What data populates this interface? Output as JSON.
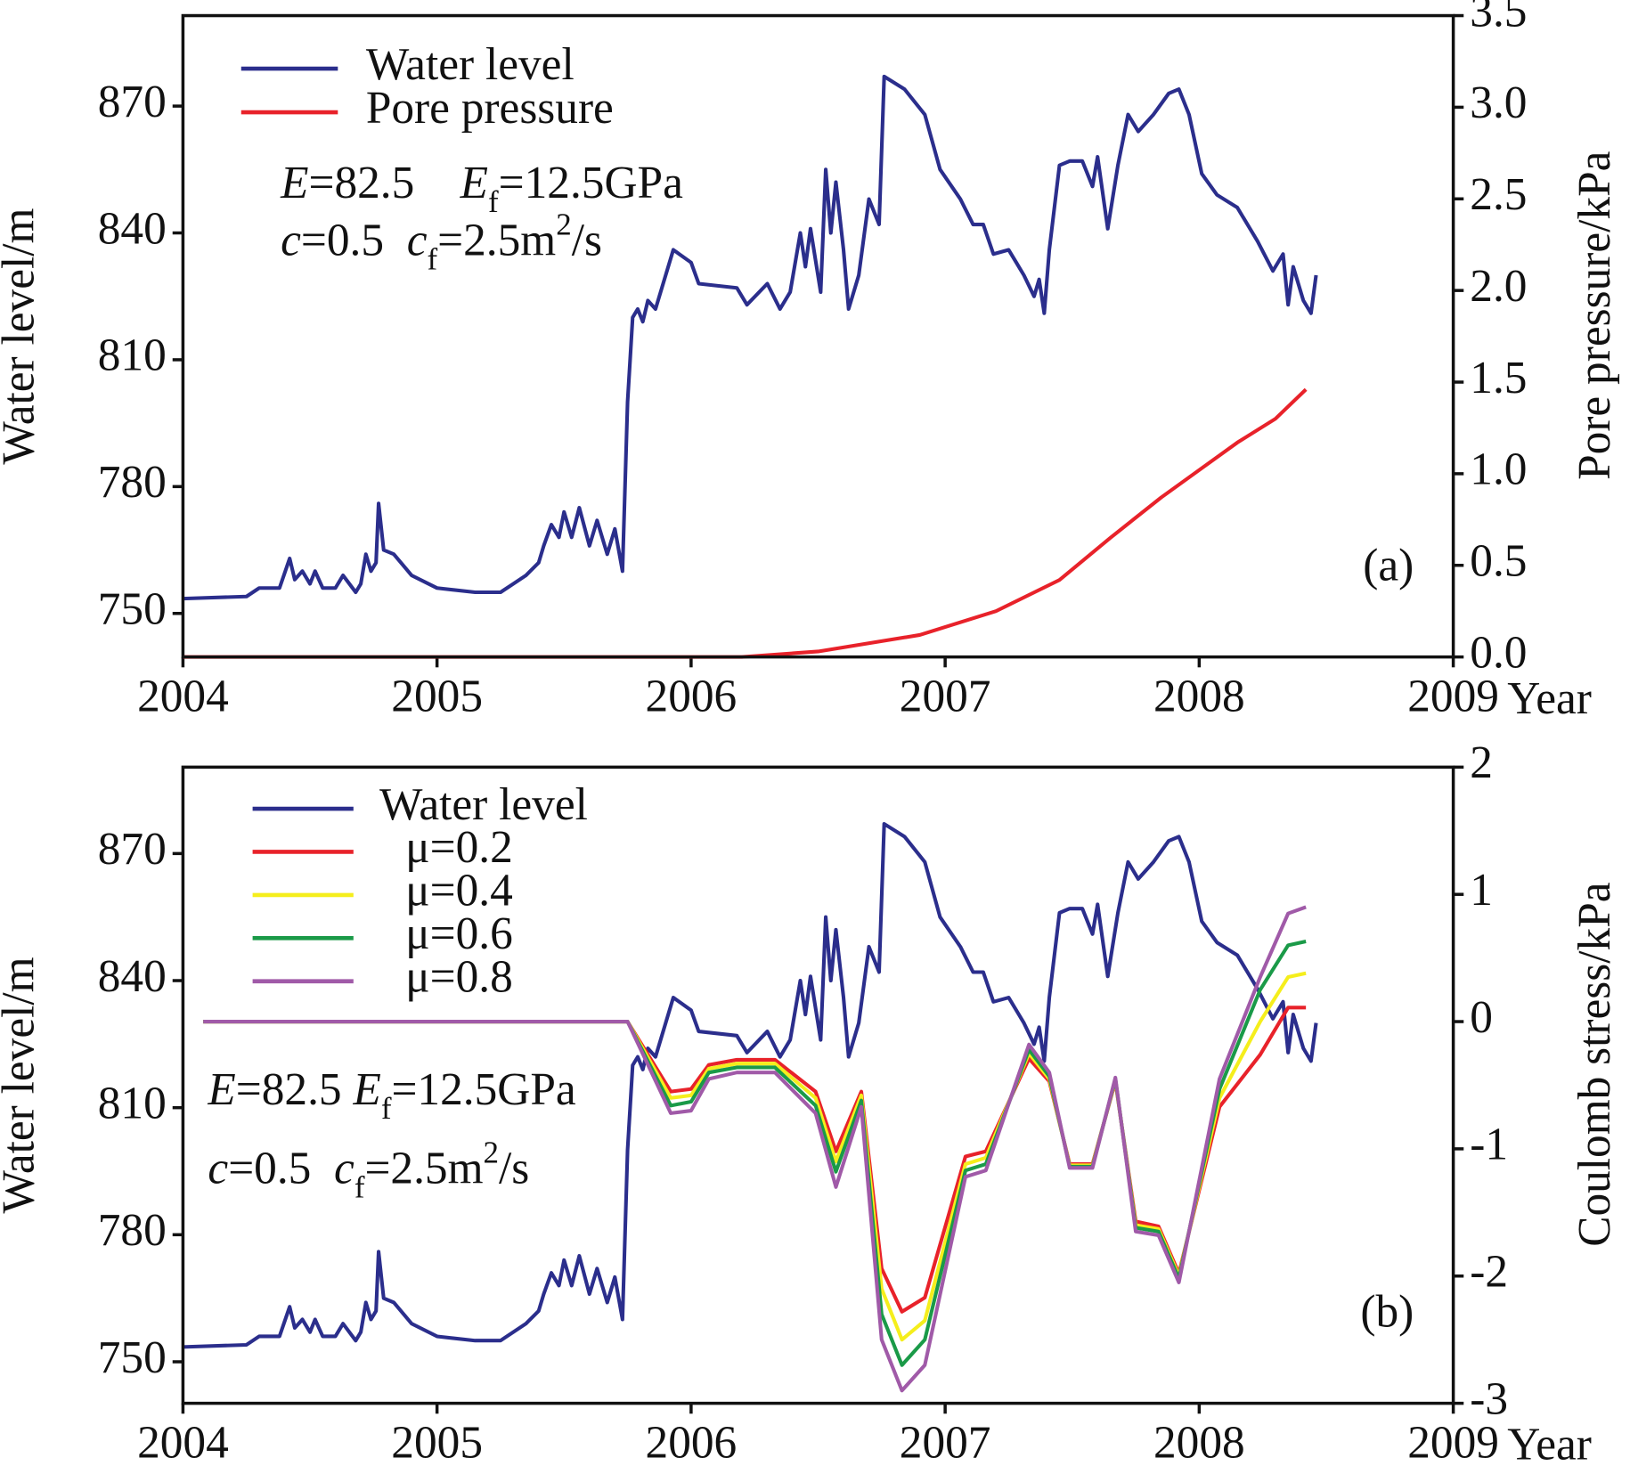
{
  "chart_data": [
    {
      "type": "line",
      "panel_label": "(a)",
      "xlabel": "Year",
      "ylabel": "Water level/m",
      "y2label": "Pore pressure/kPa",
      "xlim": [
        2004,
        2009
      ],
      "xticks": [
        2004,
        2005,
        2006,
        2007,
        2008,
        2009
      ],
      "ylim": [
        739.7,
        891.4
      ],
      "yticks": [
        750,
        780,
        810,
        840,
        870
      ],
      "y2lim": [
        0,
        3.5
      ],
      "y2ticks": [
        {
          "value": 0,
          "label": "0.0"
        },
        0.5,
        {
          "value": 1,
          "label": "1.0"
        },
        1.5,
        {
          "value": 2,
          "label": "2.0"
        },
        2.5,
        {
          "value": 3,
          "label": "3.0"
        },
        3.5
      ],
      "annotations": [
        [
          {
            "text": "E",
            "style": "italic"
          },
          {
            "text": "=82.5    ",
            "style": "normal"
          },
          {
            "text": "E",
            "style": "italic"
          },
          {
            "text": "f",
            "style": "sub"
          },
          {
            "text": "=12.5GPa",
            "style": "normal"
          }
        ],
        [
          {
            "text": "c",
            "style": "italic"
          },
          {
            "text": "=0.5  ",
            "style": "normal"
          },
          {
            "text": "c",
            "style": "italic"
          },
          {
            "text": "f",
            "style": "sub"
          },
          {
            "text": "=2.5m",
            "style": "normal"
          },
          {
            "text": "2",
            "style": "sup"
          },
          {
            "text": "/s",
            "style": "normal"
          }
        ]
      ],
      "series": [
        {
          "name": "Water level",
          "color": "#2b2e8c",
          "x": [
            2004.0,
            2004.25,
            2004.3,
            2004.38,
            2004.42,
            2004.44,
            2004.47,
            2004.5,
            2004.52,
            2004.55,
            2004.6,
            2004.63,
            2004.68,
            2004.7,
            2004.72,
            2004.74,
            2004.76,
            2004.77,
            2004.79,
            2004.83,
            2004.9,
            2005.0,
            2005.15,
            2005.25,
            2005.3,
            2005.35,
            2005.4,
            2005.42,
            2005.45,
            2005.48,
            2005.5,
            2005.53,
            2005.56,
            2005.6,
            2005.63,
            2005.67,
            2005.7,
            2005.73,
            2005.75,
            2005.77,
            2005.79,
            2005.81,
            2005.83,
            2005.86,
            2005.93,
            2006.0,
            2006.03,
            2006.18,
            2006.22,
            2006.3,
            2006.35,
            2006.39,
            2006.43,
            2006.45,
            2006.47,
            2006.51,
            2006.53,
            2006.55,
            2006.57,
            2006.6,
            2006.62,
            2006.66,
            2006.7,
            2006.74,
            2006.76,
            2006.84,
            2006.92,
            2006.98,
            2007.06,
            2007.11,
            2007.15,
            2007.19,
            2007.25,
            2007.31,
            2007.35,
            2007.37,
            2007.39,
            2007.41,
            2007.45,
            2007.49,
            2007.54,
            2007.58,
            2007.6,
            2007.64,
            2007.68,
            2007.72,
            2007.76,
            2007.82,
            2007.88,
            2007.92,
            2007.96,
            2008.01,
            2008.07,
            2008.15,
            2008.23,
            2008.29,
            2008.33,
            2008.35,
            2008.37,
            2008.41,
            2008.44,
            2008.46
          ],
          "values": [
            753.5,
            754,
            756,
            756,
            763,
            758,
            760,
            757,
            760,
            756,
            756,
            759,
            755,
            757,
            764,
            760,
            762,
            776,
            765,
            764,
            759,
            756,
            755,
            755,
            757,
            759,
            762,
            766,
            771,
            768,
            774,
            768,
            775,
            766,
            772,
            764,
            770,
            760,
            800,
            820,
            822,
            819,
            824,
            822,
            836,
            833,
            828,
            827,
            823,
            828,
            822,
            826,
            840,
            832,
            841,
            826,
            855,
            840,
            852,
            836,
            822,
            830,
            848,
            842,
            877,
            874,
            868,
            855,
            848,
            842,
            842,
            835,
            836,
            830,
            825,
            829,
            821,
            836,
            856,
            857,
            857,
            851,
            858,
            841,
            856,
            868,
            864,
            868,
            873,
            874,
            868,
            854,
            849,
            846,
            838,
            831,
            835,
            823,
            832,
            824,
            821,
            830
          ]
        },
        {
          "name": "Pore pressure",
          "color": "#e8222a",
          "axis": "y2",
          "x": [
            2004.0,
            2006.2,
            2006.5,
            2006.9,
            2007.2,
            2007.45,
            2007.65,
            2007.85,
            2008.0,
            2008.15,
            2008.3,
            2008.42
          ],
          "values": [
            0,
            0,
            0.03,
            0.12,
            0.25,
            0.42,
            0.65,
            0.87,
            1.02,
            1.17,
            1.3,
            1.46
          ]
        }
      ]
    },
    {
      "type": "line",
      "panel_label": "(b)",
      "xlabel": "Year",
      "ylabel": "Water level/m",
      "y2label": "Coulomb stress/kPa",
      "xlim": [
        2004,
        2009
      ],
      "xticks": [
        2004,
        2005,
        2006,
        2007,
        2008,
        2009
      ],
      "ylim": [
        740.2,
        890.4
      ],
      "yticks": [
        750,
        780,
        810,
        840,
        870
      ],
      "y2lim": [
        -3,
        2
      ],
      "y2ticks": [
        -3,
        -2,
        -1,
        0,
        1,
        2
      ],
      "annotations": [
        [
          {
            "text": "E",
            "style": "italic"
          },
          {
            "text": "=82.5 ",
            "style": "normal"
          },
          {
            "text": "E",
            "style": "italic"
          },
          {
            "text": "f",
            "style": "sub"
          },
          {
            "text": "=12.5GPa",
            "style": "normal"
          }
        ],
        [
          {
            "text": "c",
            "style": "italic"
          },
          {
            "text": "=0.5  ",
            "style": "normal"
          },
          {
            "text": "c",
            "style": "italic"
          },
          {
            "text": "f",
            "style": "sub"
          },
          {
            "text": "=2.5m",
            "style": "normal"
          },
          {
            "text": "2",
            "style": "sup"
          },
          {
            "text": "/s",
            "style": "normal"
          }
        ]
      ],
      "series": [
        {
          "name": "Water level",
          "color": "#2b2e8c",
          "x": [
            2004.0,
            2004.25,
            2004.3,
            2004.38,
            2004.42,
            2004.44,
            2004.47,
            2004.5,
            2004.52,
            2004.55,
            2004.6,
            2004.63,
            2004.68,
            2004.7,
            2004.72,
            2004.74,
            2004.76,
            2004.77,
            2004.79,
            2004.83,
            2004.9,
            2005.0,
            2005.15,
            2005.25,
            2005.3,
            2005.35,
            2005.4,
            2005.42,
            2005.45,
            2005.48,
            2005.5,
            2005.53,
            2005.56,
            2005.6,
            2005.63,
            2005.67,
            2005.7,
            2005.73,
            2005.75,
            2005.77,
            2005.79,
            2005.81,
            2005.83,
            2005.86,
            2005.93,
            2006.0,
            2006.03,
            2006.18,
            2006.22,
            2006.3,
            2006.35,
            2006.39,
            2006.43,
            2006.45,
            2006.47,
            2006.51,
            2006.53,
            2006.55,
            2006.57,
            2006.6,
            2006.62,
            2006.66,
            2006.7,
            2006.74,
            2006.76,
            2006.84,
            2006.92,
            2006.98,
            2007.06,
            2007.11,
            2007.15,
            2007.19,
            2007.25,
            2007.31,
            2007.35,
            2007.37,
            2007.39,
            2007.41,
            2007.45,
            2007.49,
            2007.54,
            2007.58,
            2007.6,
            2007.64,
            2007.68,
            2007.72,
            2007.76,
            2007.82,
            2007.88,
            2007.92,
            2007.96,
            2008.01,
            2008.07,
            2008.15,
            2008.23,
            2008.29,
            2008.33,
            2008.35,
            2008.37,
            2008.41,
            2008.44,
            2008.46
          ],
          "values": [
            753.5,
            754,
            756,
            756,
            763,
            758,
            760,
            757,
            760,
            756,
            756,
            759,
            755,
            757,
            764,
            760,
            762,
            776,
            765,
            764,
            759,
            756,
            755,
            755,
            757,
            759,
            762,
            766,
            771,
            768,
            774,
            768,
            775,
            766,
            772,
            764,
            770,
            760,
            800,
            820,
            822,
            819,
            824,
            822,
            836,
            833,
            828,
            827,
            823,
            828,
            822,
            826,
            840,
            832,
            841,
            826,
            855,
            840,
            852,
            836,
            822,
            830,
            848,
            842,
            877,
            874,
            868,
            855,
            848,
            842,
            842,
            835,
            836,
            830,
            825,
            829,
            821,
            836,
            856,
            857,
            857,
            851,
            858,
            841,
            856,
            868,
            864,
            868,
            873,
            874,
            868,
            854,
            849,
            846,
            838,
            831,
            835,
            823,
            832,
            824,
            821,
            830
          ]
        },
        {
          "name": "μ=0.2",
          "color": "#e8222a",
          "axis": "y2",
          "x": [
            2004.08,
            2005.75,
            2005.92,
            2006.0,
            2006.07,
            2006.18,
            2006.33,
            2006.49,
            2006.57,
            2006.67,
            2006.75,
            2006.83,
            2006.92,
            2007.08,
            2007.16,
            2007.33,
            2007.41,
            2007.49,
            2007.58,
            2007.67,
            2007.75,
            2007.84,
            2007.92,
            2008.08,
            2008.24,
            2008.35,
            2008.42
          ],
          "values": [
            0,
            0,
            -0.55,
            -0.53,
            -0.34,
            -0.3,
            -0.3,
            -0.55,
            -1.02,
            -0.55,
            -1.94,
            -2.28,
            -2.17,
            -1.06,
            -1.02,
            -0.29,
            -0.47,
            -1.12,
            -1.12,
            -0.47,
            -1.57,
            -1.61,
            -1.98,
            -0.67,
            -0.26,
            0.11,
            0.11
          ]
        },
        {
          "name": "μ=0.4",
          "color": "#f5ee1c",
          "axis": "y2",
          "x": [
            2004.08,
            2005.75,
            2005.92,
            2006.0,
            2006.07,
            2006.18,
            2006.33,
            2006.49,
            2006.57,
            2006.67,
            2006.75,
            2006.83,
            2006.92,
            2007.08,
            2007.16,
            2007.33,
            2007.41,
            2007.49,
            2007.58,
            2007.67,
            2007.75,
            2007.84,
            2007.92,
            2008.08,
            2008.24,
            2008.35,
            2008.42
          ],
          "values": [
            0,
            0,
            -0.6,
            -0.58,
            -0.37,
            -0.33,
            -0.33,
            -0.6,
            -1.1,
            -0.58,
            -2.1,
            -2.5,
            -2.35,
            -1.12,
            -1.07,
            -0.25,
            -0.45,
            -1.13,
            -1.13,
            -0.46,
            -1.6,
            -1.63,
            -2.0,
            -0.6,
            0.0,
            0.35,
            0.38
          ]
        },
        {
          "name": "μ=0.6",
          "color": "#1a9a48",
          "axis": "y2",
          "x": [
            2004.08,
            2005.75,
            2005.92,
            2006.0,
            2006.07,
            2006.18,
            2006.33,
            2006.49,
            2006.57,
            2006.67,
            2006.75,
            2006.83,
            2006.92,
            2007.08,
            2007.16,
            2007.33,
            2007.41,
            2007.49,
            2007.58,
            2007.67,
            2007.75,
            2007.84,
            2007.92,
            2008.08,
            2008.24,
            2008.35,
            2008.42
          ],
          "values": [
            0,
            0,
            -0.66,
            -0.63,
            -0.4,
            -0.36,
            -0.36,
            -0.66,
            -1.18,
            -0.62,
            -2.3,
            -2.7,
            -2.5,
            -1.17,
            -1.12,
            -0.22,
            -0.43,
            -1.14,
            -1.14,
            -0.45,
            -1.62,
            -1.65,
            -2.02,
            -0.53,
            0.25,
            0.6,
            0.63
          ]
        },
        {
          "name": "μ=0.8",
          "color": "#a05aa8",
          "axis": "y2",
          "x": [
            2004.08,
            2005.75,
            2005.92,
            2006.0,
            2006.07,
            2006.18,
            2006.33,
            2006.49,
            2006.57,
            2006.67,
            2006.75,
            2006.83,
            2006.92,
            2007.08,
            2007.16,
            2007.33,
            2007.41,
            2007.49,
            2007.58,
            2007.67,
            2007.75,
            2007.84,
            2007.92,
            2008.08,
            2008.24,
            2008.35,
            2008.42
          ],
          "values": [
            0,
            0,
            -0.72,
            -0.7,
            -0.45,
            -0.4,
            -0.4,
            -0.72,
            -1.3,
            -0.67,
            -2.5,
            -2.9,
            -2.7,
            -1.22,
            -1.17,
            -0.18,
            -0.4,
            -1.15,
            -1.15,
            -0.44,
            -1.65,
            -1.68,
            -2.05,
            -0.45,
            0.35,
            0.85,
            0.9
          ]
        }
      ]
    }
  ]
}
